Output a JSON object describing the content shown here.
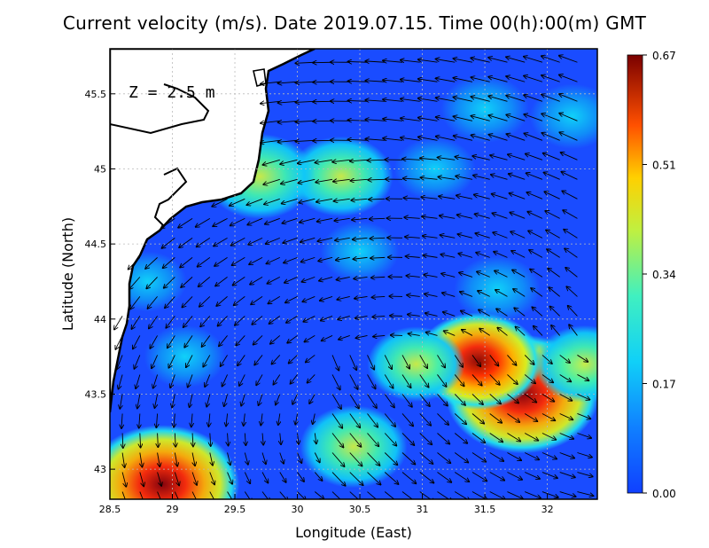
{
  "chart_data": {
    "type": "heatmap",
    "title": "Current velocity (m/s). Date 2019.07.15. Time 00(h):00(m) GMT",
    "xlabel": "Longitude (East)",
    "ylabel": "Latitude (North)",
    "xlim": [
      28.5,
      32.4
    ],
    "ylim": [
      42.8,
      45.8
    ],
    "x_ticks": [
      "28.5",
      "29",
      "29.5",
      "30",
      "30.5",
      "31",
      "31.5",
      "32"
    ],
    "y_ticks": [
      "43",
      "43.5",
      "44",
      "44.5",
      "45",
      "45.5"
    ],
    "annotation": "Z = 2.5 m",
    "colorbar": {
      "range": [
        0.0,
        0.67
      ],
      "ticks": [
        "0.00",
        "0.17",
        "0.34",
        "0.51",
        "0.67"
      ]
    },
    "hotspots": [
      {
        "lon": 31.8,
        "lat": 43.5,
        "speed": 0.67
      },
      {
        "lon": 31.45,
        "lat": 43.72,
        "speed": 0.5
      },
      {
        "lon": 28.92,
        "lat": 42.9,
        "speed": 0.67
      },
      {
        "lon": 30.45,
        "lat": 43.15,
        "speed": 0.38
      },
      {
        "lon": 30.95,
        "lat": 43.7,
        "speed": 0.32
      },
      {
        "lon": 30.35,
        "lat": 44.95,
        "speed": 0.36
      },
      {
        "lon": 29.7,
        "lat": 44.95,
        "speed": 0.4
      },
      {
        "lon": 32.3,
        "lat": 43.7,
        "speed": 0.34
      },
      {
        "lon": 31.5,
        "lat": 45.4,
        "speed": 0.26
      },
      {
        "lon": 32.2,
        "lat": 45.35,
        "speed": 0.24
      },
      {
        "lon": 29.1,
        "lat": 43.75,
        "speed": 0.22
      },
      {
        "lon": 30.5,
        "lat": 44.45,
        "speed": 0.2
      },
      {
        "lon": 31.6,
        "lat": 44.2,
        "speed": 0.25
      },
      {
        "lon": 28.8,
        "lat": 44.25,
        "speed": 0.2
      },
      {
        "lon": 31.1,
        "lat": 45.0,
        "speed": 0.22
      }
    ],
    "grid": "on"
  }
}
